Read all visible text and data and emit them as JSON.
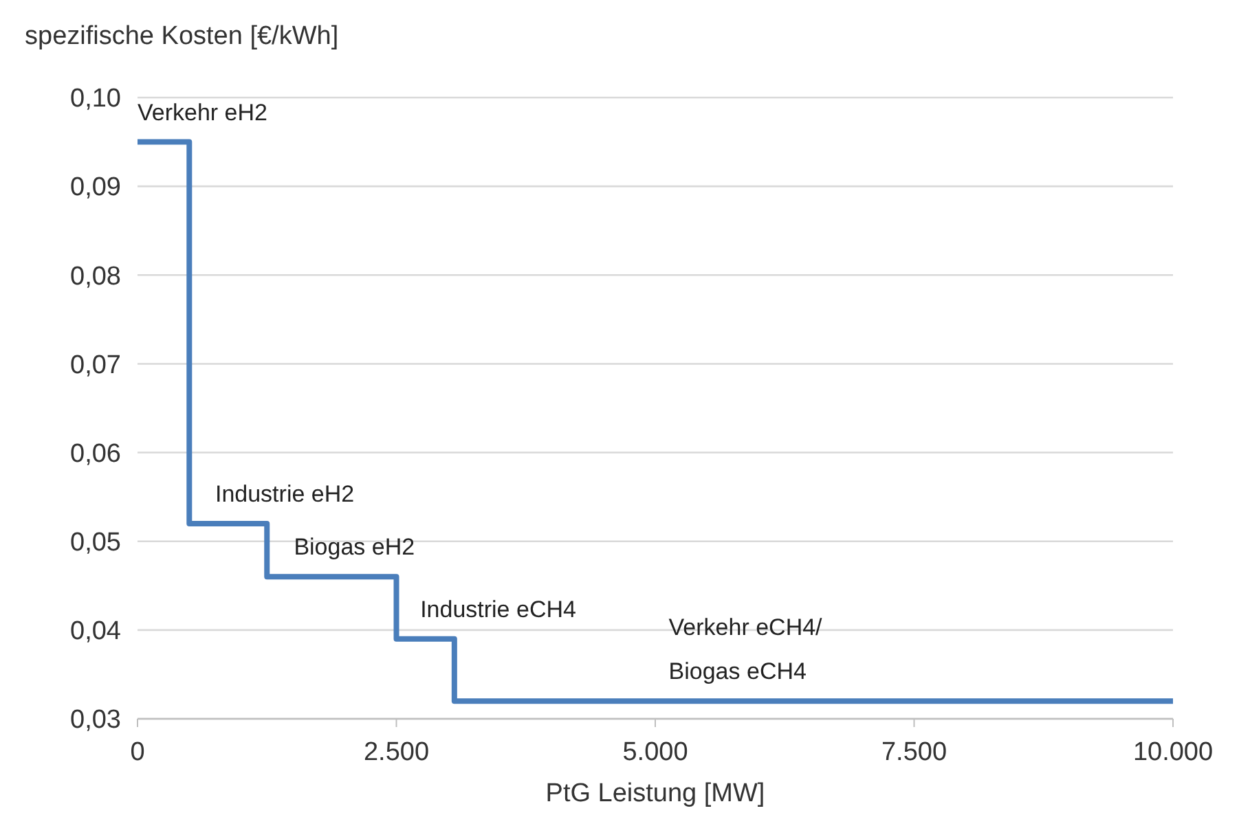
{
  "chart_data": {
    "type": "step",
    "ylabel": "spezifische Kosten [€/kWh]",
    "xlabel": "PtG Leistung [MW]",
    "x": [
      0,
      500,
      1250,
      2500,
      3060,
      10000
    ],
    "series": [
      {
        "color": "#4a7ebb",
        "values": [
          0.095,
          0.052,
          0.046,
          0.039,
          0.032,
          0.032
        ]
      }
    ],
    "xlim": [
      0,
      10000
    ],
    "xticks": [
      {
        "value": 0,
        "label": "0"
      },
      {
        "value": 2500,
        "label": "2.500"
      },
      {
        "value": 5000,
        "label": "5.000"
      },
      {
        "value": 7500,
        "label": "7.500"
      },
      {
        "value": 10000,
        "label": "10.000"
      }
    ],
    "ylim": [
      0.03,
      0.1
    ],
    "yticks": [
      {
        "value": 0.03,
        "label": "0,03"
      },
      {
        "value": 0.04,
        "label": "0,04"
      },
      {
        "value": 0.05,
        "label": "0,05"
      },
      {
        "value": 0.06,
        "label": "0,06"
      },
      {
        "value": 0.07,
        "label": "0,07"
      },
      {
        "value": 0.08,
        "label": "0,08"
      },
      {
        "value": 0.09,
        "label": "0,09"
      },
      {
        "value": 0.1,
        "label": "0,10"
      }
    ],
    "grid": "y",
    "line_style": "solid",
    "marker": "none",
    "annotations": [
      {
        "text": "Verkehr eH2",
        "x": 0,
        "y": 0.095
      },
      {
        "text": "Industrie eH2",
        "x": 750,
        "y": 0.052
      },
      {
        "text": "Biogas eH2",
        "x": 1510,
        "y": 0.046
      },
      {
        "text": "Industrie eCH4",
        "x": 2730,
        "y": 0.039
      },
      {
        "text": "Verkehr eCH4/\nBiogas eCH4",
        "x": 5130,
        "y": 0.032
      }
    ]
  }
}
